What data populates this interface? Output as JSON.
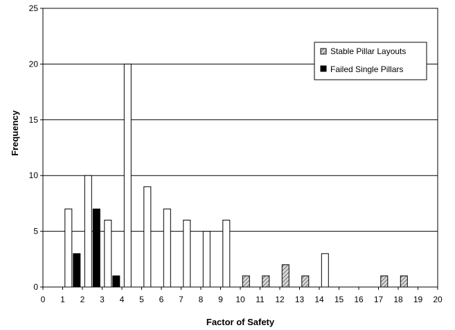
{
  "chart_data": {
    "type": "bar",
    "title": "",
    "xlabel": "Factor of Safety",
    "ylabel": "Frequency",
    "xlim": [
      0,
      20
    ],
    "ylim": [
      0,
      25
    ],
    "x_ticks": [
      "0",
      "1",
      "2",
      "3",
      "4",
      "5",
      "6",
      "7",
      "8",
      "9",
      "10",
      "11",
      "12",
      "13",
      "14",
      "15",
      "16",
      "17",
      "18",
      "19",
      "20"
    ],
    "y_ticks": [
      "0",
      "5",
      "10",
      "15",
      "20",
      "25"
    ],
    "grid": "horizontal",
    "legend_position": "top-right",
    "series": [
      {
        "name": "",
        "style": "white",
        "x": [
          1.5,
          2.5,
          3.5,
          4.5,
          5.5,
          6.5,
          7.5,
          8.5,
          9.5,
          14.5
        ],
        "values": [
          7,
          10,
          6,
          20,
          9,
          7,
          6,
          5,
          6,
          3
        ]
      },
      {
        "name": "Stable Pillar Layouts",
        "style": "hatched",
        "x": [
          10.5,
          11.5,
          12.5,
          13.5,
          17.5,
          18.5
        ],
        "values": [
          1,
          1,
          2,
          1,
          1,
          1
        ]
      },
      {
        "name": "Failed Single Pillars",
        "style": "black",
        "x": [
          1.5,
          2.5,
          3.5
        ],
        "values": [
          3,
          7,
          1
        ]
      }
    ]
  }
}
